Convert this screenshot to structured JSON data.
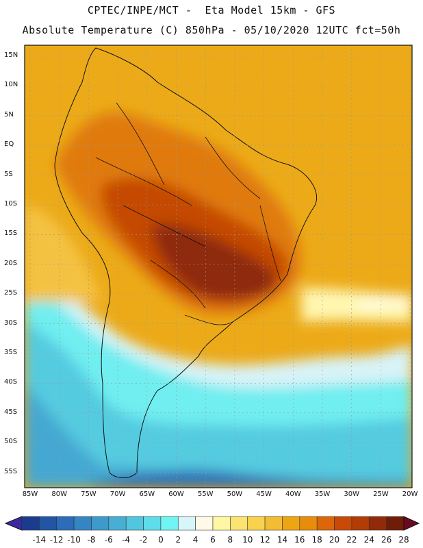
{
  "title_line1": "CPTEC/INPE/MCT -  Eta Model 15km - GFS",
  "title_line2": "Absolute Temperature (C) 850hPa - 05/10/2020 12UTC fct=50h",
  "map": {
    "lat_labels": [
      "15N",
      "10N",
      "5N",
      "EQ",
      "5S",
      "10S",
      "15S",
      "20S",
      "25S",
      "30S",
      "35S",
      "40S",
      "45S",
      "50S",
      "55S"
    ],
    "lon_labels": [
      "85W",
      "80W",
      "75W",
      "70W",
      "65W",
      "60W",
      "55W",
      "50W",
      "45W",
      "40W",
      "35W",
      "30W",
      "25W",
      "20W"
    ],
    "region": "South America"
  },
  "colorbar": {
    "labels": [
      "-14",
      "-12",
      "-10",
      "-8",
      "-6",
      "-4",
      "-2",
      "0",
      "2",
      "4",
      "6",
      "8",
      "10",
      "12",
      "14",
      "16",
      "18",
      "20",
      "22",
      "24",
      "26",
      "28"
    ],
    "colors": [
      "#1a3c8e",
      "#2255a4",
      "#2c6cb8",
      "#3584c4",
      "#3e9acb",
      "#48aed3",
      "#52c6de",
      "#5fdce9",
      "#71f4f4",
      "#d6f6fa",
      "#fffae8",
      "#fff7a4",
      "#fce472",
      "#f8d24c",
      "#f2bc35",
      "#eea512",
      "#e88d0b",
      "#dc6709",
      "#c84a06",
      "#b23c06",
      "#902a08",
      "#6f1c08"
    ],
    "low_cap_color": "#3a2aa0",
    "high_cap_color": "#6a0a20"
  }
}
